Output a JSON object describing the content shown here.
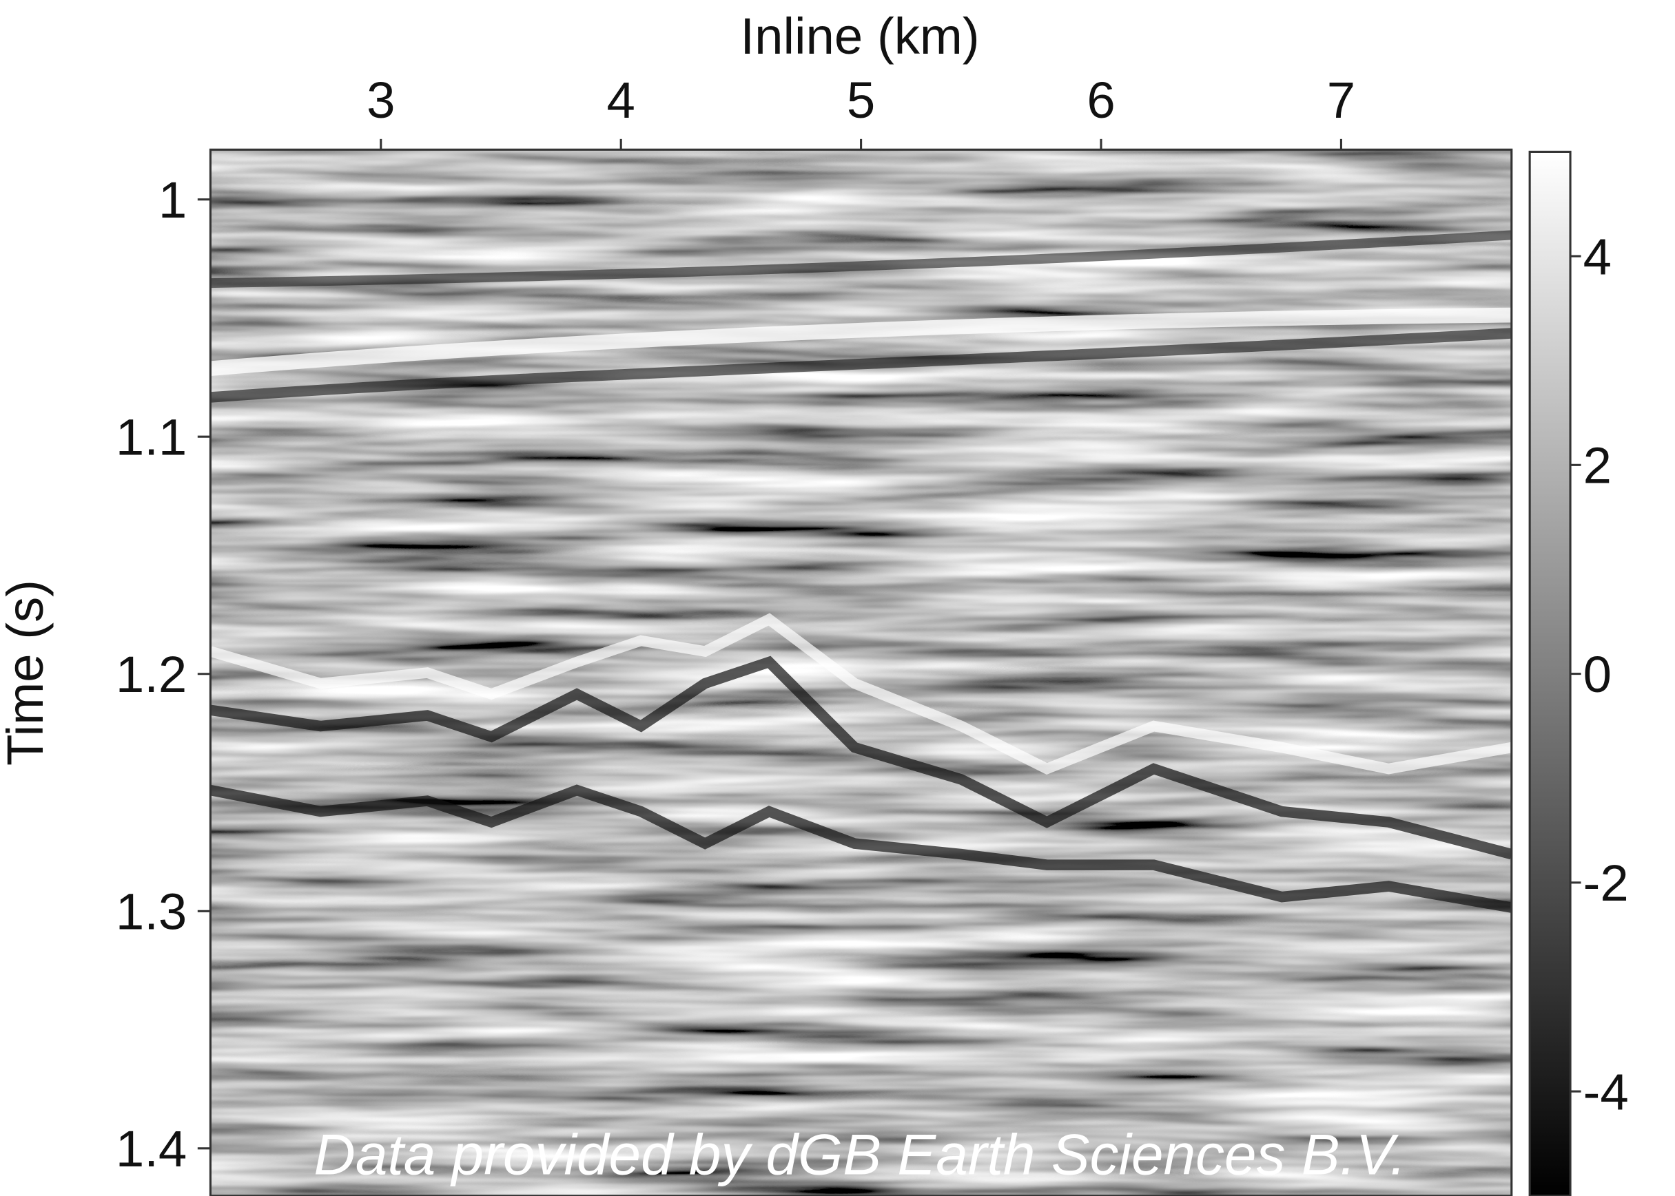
{
  "chart_data": {
    "type": "heatmap",
    "xlabel": "Inline (km)",
    "ylabel": "Time (s)",
    "annotation": "Data provided by dGB Earth Sciences B.V.",
    "xlim": [
      2.29,
      7.71
    ],
    "xticks": [
      3,
      4,
      5,
      6,
      7
    ],
    "x_axis_position": "top",
    "ylim": [
      0.979,
      1.42
    ],
    "yticks": [
      1,
      1.1,
      1.2,
      1.3,
      1.4
    ],
    "y_inverted": true,
    "colorbar": {
      "lim": [
        -5,
        5
      ],
      "ticks": [
        -4,
        -2,
        0,
        2,
        4
      ],
      "colormap": "gray"
    }
  }
}
